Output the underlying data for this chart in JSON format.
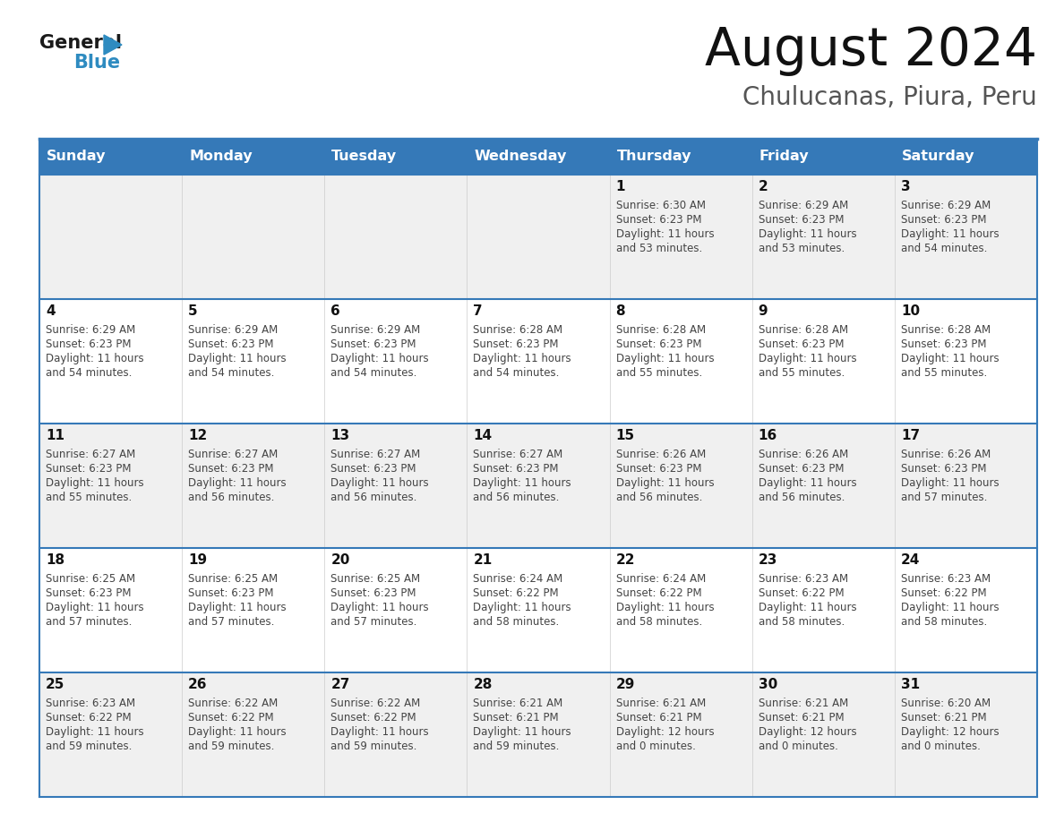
{
  "title": "August 2024",
  "subtitle": "Chulucanas, Piura, Peru",
  "header_bg_color": "#3579B8",
  "header_text_color": "#FFFFFF",
  "day_names": [
    "Sunday",
    "Monday",
    "Tuesday",
    "Wednesday",
    "Thursday",
    "Friday",
    "Saturday"
  ],
  "row_colors": [
    "#F0F0F0",
    "#FFFFFF"
  ],
  "border_color": "#3579B8",
  "text_color": "#444444",
  "number_color": "#111111",
  "logo_triangle_color": "#2E8BC0",
  "calendar": [
    [
      {
        "day": "",
        "sunrise": "",
        "sunset": "",
        "daylight_h": "",
        "daylight_m": ""
      },
      {
        "day": "",
        "sunrise": "",
        "sunset": "",
        "daylight_h": "",
        "daylight_m": ""
      },
      {
        "day": "",
        "sunrise": "",
        "sunset": "",
        "daylight_h": "",
        "daylight_m": ""
      },
      {
        "day": "",
        "sunrise": "",
        "sunset": "",
        "daylight_h": "",
        "daylight_m": ""
      },
      {
        "day": "1",
        "sunrise": "6:30 AM",
        "sunset": "6:23 PM",
        "daylight_h": "11",
        "daylight_m": "53"
      },
      {
        "day": "2",
        "sunrise": "6:29 AM",
        "sunset": "6:23 PM",
        "daylight_h": "11",
        "daylight_m": "53"
      },
      {
        "day": "3",
        "sunrise": "6:29 AM",
        "sunset": "6:23 PM",
        "daylight_h": "11",
        "daylight_m": "54"
      }
    ],
    [
      {
        "day": "4",
        "sunrise": "6:29 AM",
        "sunset": "6:23 PM",
        "daylight_h": "11",
        "daylight_m": "54"
      },
      {
        "day": "5",
        "sunrise": "6:29 AM",
        "sunset": "6:23 PM",
        "daylight_h": "11",
        "daylight_m": "54"
      },
      {
        "day": "6",
        "sunrise": "6:29 AM",
        "sunset": "6:23 PM",
        "daylight_h": "11",
        "daylight_m": "54"
      },
      {
        "day": "7",
        "sunrise": "6:28 AM",
        "sunset": "6:23 PM",
        "daylight_h": "11",
        "daylight_m": "54"
      },
      {
        "day": "8",
        "sunrise": "6:28 AM",
        "sunset": "6:23 PM",
        "daylight_h": "11",
        "daylight_m": "55"
      },
      {
        "day": "9",
        "sunrise": "6:28 AM",
        "sunset": "6:23 PM",
        "daylight_h": "11",
        "daylight_m": "55"
      },
      {
        "day": "10",
        "sunrise": "6:28 AM",
        "sunset": "6:23 PM",
        "daylight_h": "11",
        "daylight_m": "55"
      }
    ],
    [
      {
        "day": "11",
        "sunrise": "6:27 AM",
        "sunset": "6:23 PM",
        "daylight_h": "11",
        "daylight_m": "55"
      },
      {
        "day": "12",
        "sunrise": "6:27 AM",
        "sunset": "6:23 PM",
        "daylight_h": "11",
        "daylight_m": "56"
      },
      {
        "day": "13",
        "sunrise": "6:27 AM",
        "sunset": "6:23 PM",
        "daylight_h": "11",
        "daylight_m": "56"
      },
      {
        "day": "14",
        "sunrise": "6:27 AM",
        "sunset": "6:23 PM",
        "daylight_h": "11",
        "daylight_m": "56"
      },
      {
        "day": "15",
        "sunrise": "6:26 AM",
        "sunset": "6:23 PM",
        "daylight_h": "11",
        "daylight_m": "56"
      },
      {
        "day": "16",
        "sunrise": "6:26 AM",
        "sunset": "6:23 PM",
        "daylight_h": "11",
        "daylight_m": "56"
      },
      {
        "day": "17",
        "sunrise": "6:26 AM",
        "sunset": "6:23 PM",
        "daylight_h": "11",
        "daylight_m": "57"
      }
    ],
    [
      {
        "day": "18",
        "sunrise": "6:25 AM",
        "sunset": "6:23 PM",
        "daylight_h": "11",
        "daylight_m": "57"
      },
      {
        "day": "19",
        "sunrise": "6:25 AM",
        "sunset": "6:23 PM",
        "daylight_h": "11",
        "daylight_m": "57"
      },
      {
        "day": "20",
        "sunrise": "6:25 AM",
        "sunset": "6:23 PM",
        "daylight_h": "11",
        "daylight_m": "57"
      },
      {
        "day": "21",
        "sunrise": "6:24 AM",
        "sunset": "6:22 PM",
        "daylight_h": "11",
        "daylight_m": "58"
      },
      {
        "day": "22",
        "sunrise": "6:24 AM",
        "sunset": "6:22 PM",
        "daylight_h": "11",
        "daylight_m": "58"
      },
      {
        "day": "23",
        "sunrise": "6:23 AM",
        "sunset": "6:22 PM",
        "daylight_h": "11",
        "daylight_m": "58"
      },
      {
        "day": "24",
        "sunrise": "6:23 AM",
        "sunset": "6:22 PM",
        "daylight_h": "11",
        "daylight_m": "58"
      }
    ],
    [
      {
        "day": "25",
        "sunrise": "6:23 AM",
        "sunset": "6:22 PM",
        "daylight_h": "11",
        "daylight_m": "59"
      },
      {
        "day": "26",
        "sunrise": "6:22 AM",
        "sunset": "6:22 PM",
        "daylight_h": "11",
        "daylight_m": "59"
      },
      {
        "day": "27",
        "sunrise": "6:22 AM",
        "sunset": "6:22 PM",
        "daylight_h": "11",
        "daylight_m": "59"
      },
      {
        "day": "28",
        "sunrise": "6:21 AM",
        "sunset": "6:21 PM",
        "daylight_h": "11",
        "daylight_m": "59"
      },
      {
        "day": "29",
        "sunrise": "6:21 AM",
        "sunset": "6:21 PM",
        "daylight_h": "12",
        "daylight_m": "0"
      },
      {
        "day": "30",
        "sunrise": "6:21 AM",
        "sunset": "6:21 PM",
        "daylight_h": "12",
        "daylight_m": "0"
      },
      {
        "day": "31",
        "sunrise": "6:20 AM",
        "sunset": "6:21 PM",
        "daylight_h": "12",
        "daylight_m": "0"
      }
    ]
  ]
}
